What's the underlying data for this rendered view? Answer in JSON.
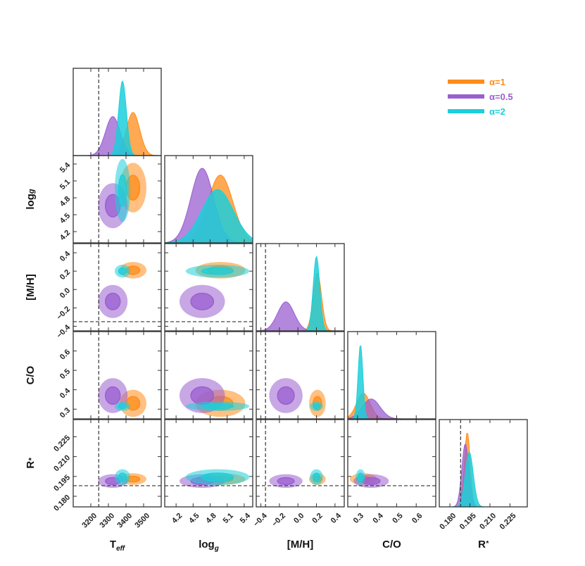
{
  "chart_data": {
    "type": "corner",
    "colors": {
      "alpha_1": "#FF8C1A",
      "alpha_0_5": "#9A5FD0",
      "alpha_2": "#1CCFDB",
      "truth_line": "#333333",
      "frame": "#333333"
    },
    "legend": [
      {
        "label": "α=1",
        "color": "#FF8C1A"
      },
      {
        "label": "α=0.5",
        "color": "#9A5FD0"
      },
      {
        "label": "α=2",
        "color": "#1CCFDB"
      }
    ],
    "parameters": [
      {
        "key": "teff",
        "label_main": "T",
        "label_sub": "eff",
        "range": [
          3100,
          3600
        ],
        "ticks": [
          3200,
          3300,
          3400,
          3500
        ],
        "tick_labels": [
          "3200",
          "3300",
          "3400",
          "3500"
        ],
        "truth": 3245
      },
      {
        "key": "logg",
        "label_main": "log",
        "label_sub": "g",
        "range": [
          4.0,
          5.55
        ],
        "ticks": [
          4.2,
          4.5,
          4.8,
          5.1,
          5.4
        ],
        "tick_labels": [
          "4.2",
          "4.5",
          "4.8",
          "5.1",
          "5.4"
        ],
        "truth": null
      },
      {
        "key": "mh",
        "label_main": "[M/H]",
        "label_sub": "",
        "range": [
          -0.45,
          0.5
        ],
        "ticks": [
          -0.4,
          -0.2,
          0.0,
          0.2,
          0.4
        ],
        "tick_labels": [
          "−0.4",
          "−0.2",
          "0.0",
          "0.2",
          "0.4"
        ],
        "truth": -0.35
      },
      {
        "key": "co",
        "label_main": "C/O",
        "label_sub": "",
        "range": [
          0.25,
          0.7
        ],
        "ticks": [
          0.3,
          0.4,
          0.5,
          0.6
        ],
        "tick_labels": [
          "0.3",
          "0.4",
          "0.5",
          "0.6"
        ],
        "truth": null
      },
      {
        "key": "rstar",
        "label_main": "R",
        "label_sub": "*",
        "range": [
          0.172,
          0.238
        ],
        "ticks": [
          0.18,
          0.195,
          0.21,
          0.225
        ],
        "tick_labels": [
          "0.180",
          "0.195",
          "0.210",
          "0.225"
        ],
        "truth": 0.188
      }
    ],
    "series": [
      {
        "name": "α=1",
        "color": "#FF8C1A",
        "mean": {
          "teff": 3440,
          "logg": 4.98,
          "mh": 0.21,
          "co": 0.33,
          "rstar": 0.193
        },
        "sigma": {
          "teff": 38,
          "logg": 0.22,
          "mh": 0.045,
          "co": 0.035,
          "rstar": 0.0022
        }
      },
      {
        "name": "α=0.5",
        "color": "#9A5FD0",
        "mean": {
          "teff": 3325,
          "logg": 4.66,
          "mh": -0.13,
          "co": 0.37,
          "rstar": 0.1915
        },
        "sigma": {
          "teff": 42,
          "logg": 0.2,
          "mh": 0.09,
          "co": 0.045,
          "rstar": 0.0026
        }
      },
      {
        "name": "α=2",
        "color": "#1CCFDB",
        "mean": {
          "teff": 3380,
          "logg": 4.93,
          "mh": 0.2,
          "co": 0.315,
          "rstar": 0.1945
        },
        "sigma": {
          "teff": 22,
          "logg": 0.28,
          "mh": 0.035,
          "co": 0.012,
          "rstar": 0.003
        }
      }
    ]
  }
}
